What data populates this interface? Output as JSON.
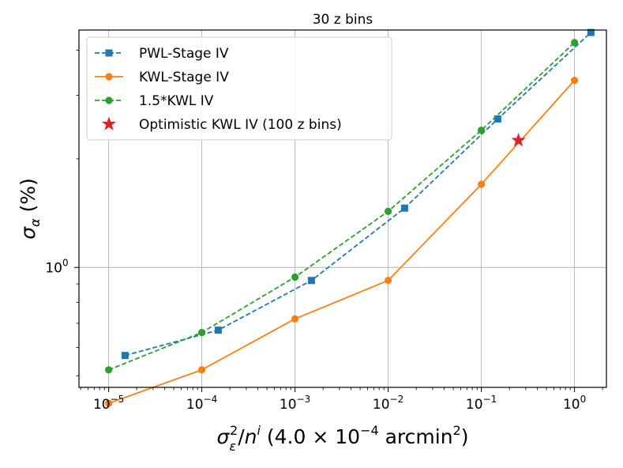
{
  "chart_data": {
    "type": "line",
    "title": "30 z bins",
    "xscale": "log",
    "yscale": "log",
    "xlim": [
      4.8e-06,
      2.2
    ],
    "ylim": [
      0.465,
      4.55
    ],
    "grid": true,
    "xlabel": {
      "symbol": "σ",
      "symbol_sub": "ε",
      "symbol_sup": "2",
      "slash": "/",
      "n": "n",
      "n_sup": "i",
      "open": " (4.0 × 10",
      "exp": "−4",
      "unit": " arcmin",
      "unit_sup": "2",
      "close": ")"
    },
    "ylabel": {
      "symbol": "σ",
      "sub": "α",
      "unit": " (%)"
    },
    "x_ticks": [
      {
        "value": 1e-05,
        "base": "10",
        "exp": "−5"
      },
      {
        "value": 0.0001,
        "base": "10",
        "exp": "−4"
      },
      {
        "value": 0.001,
        "base": "10",
        "exp": "−3"
      },
      {
        "value": 0.01,
        "base": "10",
        "exp": "−2"
      },
      {
        "value": 0.1,
        "base": "10",
        "exp": "−1"
      },
      {
        "value": 1,
        "base": "10",
        "exp": "0"
      }
    ],
    "y_ticks": [
      {
        "value": 1,
        "base": "10",
        "exp": "0"
      }
    ],
    "legend_position": "top-left",
    "series": [
      {
        "name": "PWL-Stage IV",
        "color": "#1f77b4",
        "linestyle": "dashed",
        "marker": "square",
        "x": [
          1.5e-05,
          0.00015,
          0.0015,
          0.015,
          0.15,
          1.5
        ],
        "y": [
          0.57,
          0.67,
          0.92,
          1.46,
          2.58,
          4.48
        ]
      },
      {
        "name": "KWL-Stage IV",
        "color": "#ff7f0e",
        "linestyle": "solid",
        "marker": "circle",
        "x": [
          1e-05,
          0.0001,
          0.001,
          0.01,
          0.1,
          1
        ],
        "y": [
          0.42,
          0.52,
          0.72,
          0.92,
          1.7,
          3.3
        ]
      },
      {
        "name": "1.5*KWL IV",
        "color": "#2ca02c",
        "linestyle": "dashed",
        "marker": "circle",
        "x": [
          1e-05,
          0.0001,
          0.001,
          0.01,
          0.1,
          1
        ],
        "y": [
          0.52,
          0.66,
          0.94,
          1.43,
          2.4,
          4.2
        ]
      },
      {
        "name": "Optimistic KWL IV (100 z bins)",
        "color": "#d62728",
        "linestyle": "none",
        "marker": "star",
        "x": [
          0.25
        ],
        "y": [
          2.25
        ]
      }
    ]
  }
}
